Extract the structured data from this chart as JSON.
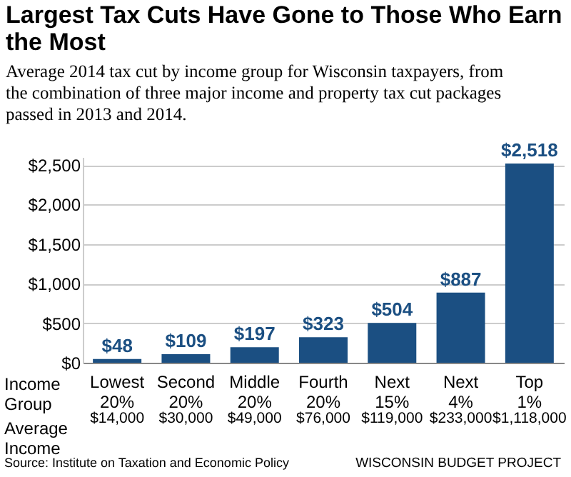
{
  "chart_data": {
    "type": "bar",
    "title": "Largest Tax Cuts Have Gone to Those Who Earn the Most",
    "subtitle": "Average 2014 tax cut by income group for Wisconsin taxpayers, from the combination of three major income and property tax cut packages passed in 2013 and 2014.",
    "categories": [
      "Lowest 20%",
      "Second 20%",
      "Middle 20%",
      "Fourth 20%",
      "Next 15%",
      "Next 4%",
      "Top 1%"
    ],
    "values": [
      48,
      109,
      197,
      323,
      504,
      887,
      2518
    ],
    "value_labels": [
      "$48",
      "$109",
      "$197",
      "$323",
      "$504",
      "$887",
      "$2,518"
    ],
    "color": "#1b4f82",
    "ylim": [
      0,
      2600
    ],
    "yticks": [
      {
        "value": 0,
        "label": "$0"
      },
      {
        "value": 500,
        "label": "$500"
      },
      {
        "value": 1000,
        "label": "$1,000"
      },
      {
        "value": 1500,
        "label": "$1,500"
      },
      {
        "value": 2000,
        "label": "$2,000"
      },
      {
        "value": 2500,
        "label": "$2,500"
      }
    ],
    "grid": "y",
    "xlabel": "Income Group",
    "annotations": [
      "Average Income",
      "$14,000",
      "$30,000",
      "$49,000",
      "$76,000",
      "$119,000",
      "$233,000",
      "$1,118,000",
      "Source: Institute on Taxation and Economic Policy",
      "WISCONSIN BUDGET PROJECT"
    ]
  }
}
